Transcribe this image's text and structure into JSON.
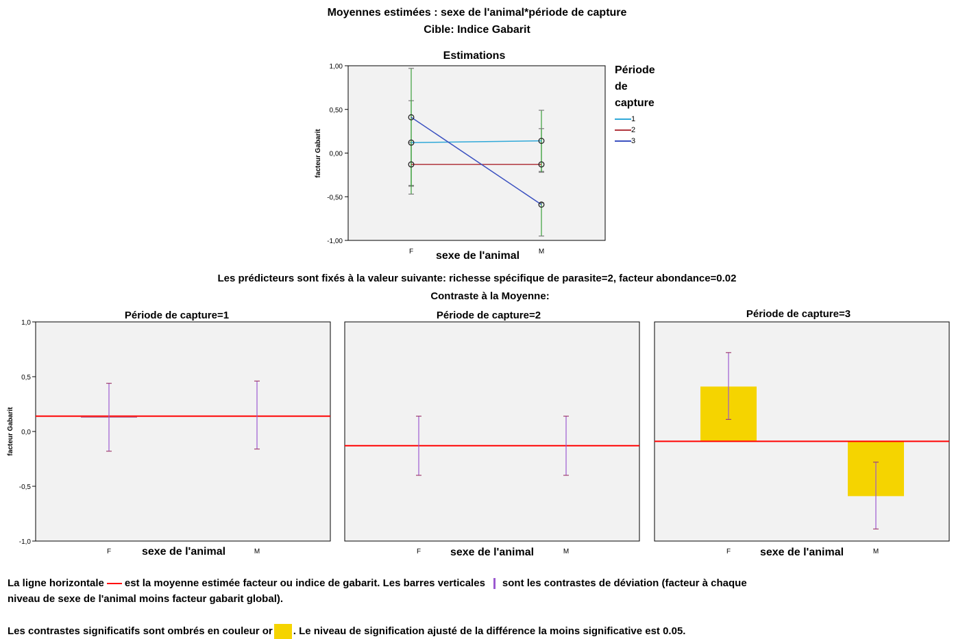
{
  "header": {
    "title": "Moyennes estimées : sexe de l'animal*période de capture",
    "subtitle": "Cible: Indice Gabarit",
    "predictors_note": "Les prédicteurs sont fixés à la valeur suivante: richesse spécifique de parasite=2, facteur abondance=0.02",
    "contrast_heading": "Contraste à la Moyenne:"
  },
  "footer": {
    "line1_a": "La ligne horizontale",
    "line1_b": "est la moyenne estimée facteur ou indice de gabarit. Les barres verticales",
    "line1_c": "sont les contrastes de déviation (facteur à chaque",
    "line2": "niveau de sexe de l'animal moins facteur gabarit global).",
    "line3_a": "Les contrastes significatifs sont ombrés en couleur or",
    "line3_b": ". Le niveau de signification ajusté de la différence la moins significative est 0.05."
  },
  "colors": {
    "series1": "#2fa8d8",
    "series2": "#b0343c",
    "series3": "#3a50c0",
    "ci_bars": "#3aa03a",
    "mean_line": "#ff0000",
    "contrast_bars": "#9b59d0",
    "significant_fill": "#f5d400",
    "plot_background": "#f2f2f2"
  },
  "chart_data": [
    {
      "type": "line",
      "title": "Estimations",
      "xlabel": "sexe de l'animal",
      "ylabel": "facteur Gabarit",
      "categories": [
        "F",
        "M"
      ],
      "ylim": [
        -1.0,
        1.0
      ],
      "yticks": [
        "1,00",
        "0,50",
        "0,00",
        "-0,50",
        "-1,00"
      ],
      "legend_title": "Période de capture",
      "legend_position": "right",
      "series": [
        {
          "name": "1",
          "values": [
            0.12,
            0.14
          ],
          "ci_low": [
            -0.37,
            -0.21
          ],
          "ci_high": [
            0.6,
            0.49
          ]
        },
        {
          "name": "2",
          "values": [
            -0.13,
            -0.13
          ],
          "ci_low": [
            -0.38,
            -0.22
          ],
          "ci_high": [
            0.12,
            0.28
          ]
        },
        {
          "name": "3",
          "values": [
            0.41,
            -0.59
          ],
          "ci_low": [
            -0.47,
            -0.95
          ],
          "ci_high": [
            0.97,
            -0.57
          ]
        }
      ]
    },
    {
      "type": "bar",
      "title": "Période de capture=1",
      "xlabel": "sexe de l'animal",
      "ylabel": "facteur Gabarit",
      "categories": [
        "F",
        "M"
      ],
      "ylim": [
        -1.0,
        1.0
      ],
      "yticks": [
        "1,0",
        "0,5",
        "0,0",
        "-0,5",
        "-1,0"
      ],
      "mean": 0.14,
      "values": [
        0.13,
        0.14
      ],
      "err_low": [
        -0.18,
        -0.16
      ],
      "err_high": [
        0.44,
        0.46
      ],
      "significant": [
        false,
        false
      ]
    },
    {
      "type": "bar",
      "title": "Période de capture=2",
      "xlabel": "sexe de l'animal",
      "ylabel": "",
      "categories": [
        "F",
        "M"
      ],
      "ylim": [
        -1.0,
        1.0
      ],
      "mean": -0.13,
      "values": [
        -0.13,
        -0.13
      ],
      "err_low": [
        -0.4,
        -0.4
      ],
      "err_high": [
        0.14,
        0.14
      ],
      "significant": [
        false,
        false
      ]
    },
    {
      "type": "bar",
      "title": "Période de capture=3",
      "xlabel": "sexe de l'animal",
      "ylabel": "",
      "categories": [
        "F",
        "M"
      ],
      "ylim": [
        -1.0,
        1.0
      ],
      "mean": -0.09,
      "values": [
        0.41,
        -0.59
      ],
      "err_low": [
        0.11,
        -0.89
      ],
      "err_high": [
        0.72,
        -0.28
      ],
      "significant": [
        true,
        true
      ]
    }
  ]
}
